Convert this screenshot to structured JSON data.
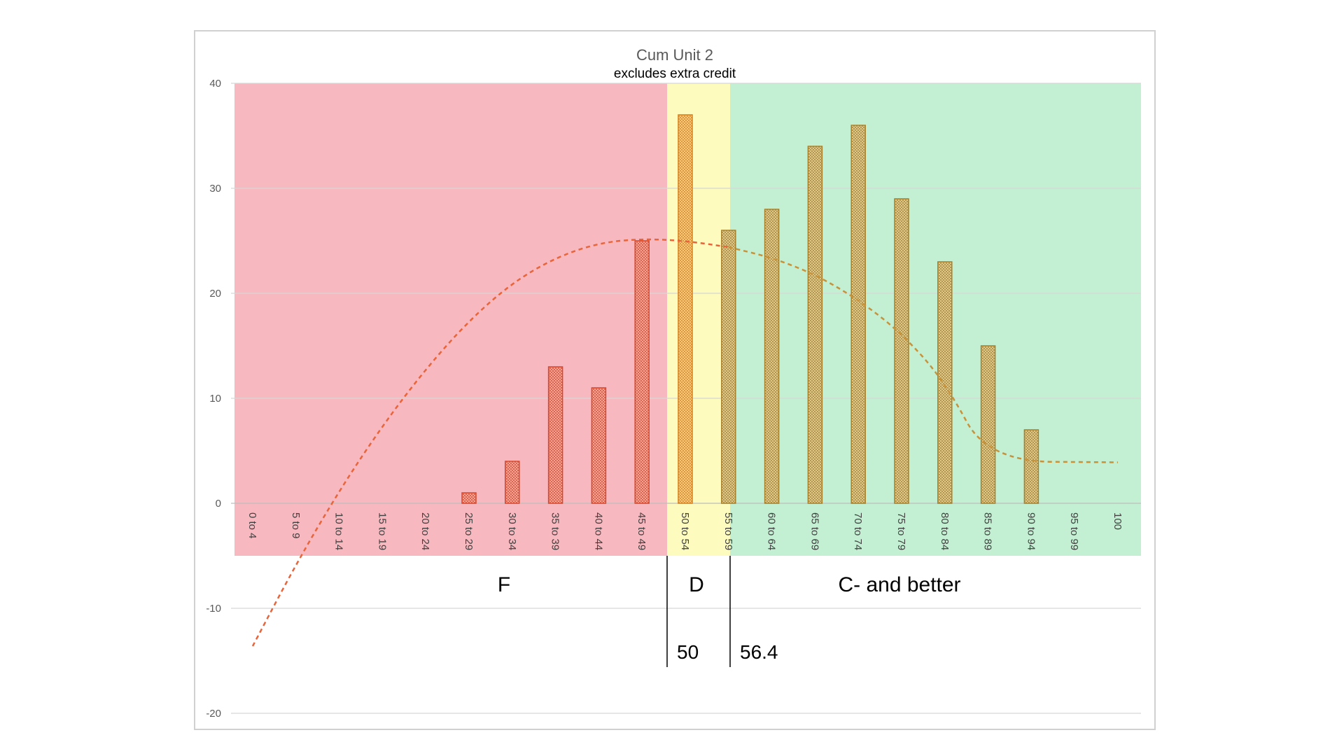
{
  "chart_data": {
    "type": "bar",
    "title": "Cum Unit 2",
    "subtitle": "excludes extra credit",
    "categories": [
      "0 to 4",
      "5 to 9",
      "10 to 14",
      "15 to 19",
      "20 to 24",
      "25 to 29",
      "30 to 34",
      "35 to 39",
      "40 to 44",
      "45 to 49",
      "50 to 54",
      "55 to 59",
      "60 to 64",
      "65 to 69",
      "70 to 74",
      "75 to 79",
      "80 to 84",
      "85 to 89",
      "90 to 94",
      "95 to 99",
      "100"
    ],
    "values": [
      0,
      0,
      0,
      0,
      0,
      1,
      4,
      13,
      11,
      25,
      37,
      26,
      28,
      34,
      36,
      29,
      23,
      15,
      7,
      0,
      0
    ],
    "ylim": [
      -20,
      40
    ],
    "yticks": [
      -20,
      -10,
      0,
      10,
      20,
      30,
      40
    ],
    "grid": true,
    "trendline": {
      "type": "polynomial",
      "values": [
        -13.6,
        -5.8,
        1.2,
        7.4,
        12.8,
        17.4,
        21.0,
        23.4,
        24.8,
        25.2,
        25.0,
        24.4,
        23.4,
        21.8,
        19.4,
        16.2,
        11.6,
        4.0
      ]
    },
    "zones": [
      {
        "label": "F",
        "cutoff_label": "",
        "color": "#f8b8bf",
        "bar_fill": "#f4a59a",
        "bar_stroke": "#d9472b",
        "trend_color": "#e8643a"
      },
      {
        "label": "D",
        "cutoff_label": "50",
        "color": "#fdfcbe",
        "bar_fill": "#f8c87a",
        "bar_stroke": "#d9801e",
        "trend_color": "#e8643a"
      },
      {
        "label": "C- and better",
        "cutoff_label": "56.4",
        "color": "#c3efd2",
        "bar_fill": "#d9c48a",
        "bar_stroke": "#a8802a",
        "trend_color": "#c8923a"
      }
    ]
  }
}
